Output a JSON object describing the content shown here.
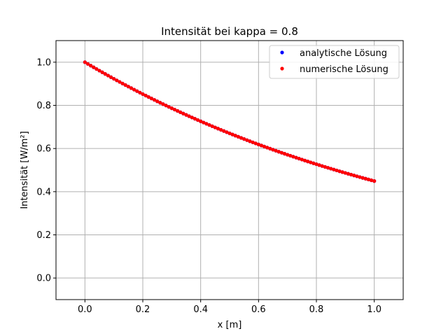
{
  "chart_data": {
    "type": "scatter",
    "title": "Intensität bei kappa = 0.8",
    "xlabel": "x [m]",
    "ylabel": "Intensität [W/m²]",
    "xlim": [
      -0.1,
      1.1
    ],
    "ylim": [
      -0.1,
      1.1
    ],
    "xticks": [
      "0.0",
      "0.2",
      "0.4",
      "0.6",
      "0.8",
      "1.0"
    ],
    "yticks": [
      "0.0",
      "0.2",
      "0.4",
      "0.6",
      "0.8",
      "1.0"
    ],
    "grid": true,
    "legend_position": "top-right",
    "function": "I(x) = exp(-0.8 x)",
    "x_range": [
      0,
      1
    ],
    "n_points": 101,
    "series": [
      {
        "name": "analytische Lösung",
        "color": "#0000ff",
        "marker": "dot"
      },
      {
        "name": "numerische Lösung",
        "color": "#ff0000",
        "marker": "dot"
      }
    ]
  }
}
